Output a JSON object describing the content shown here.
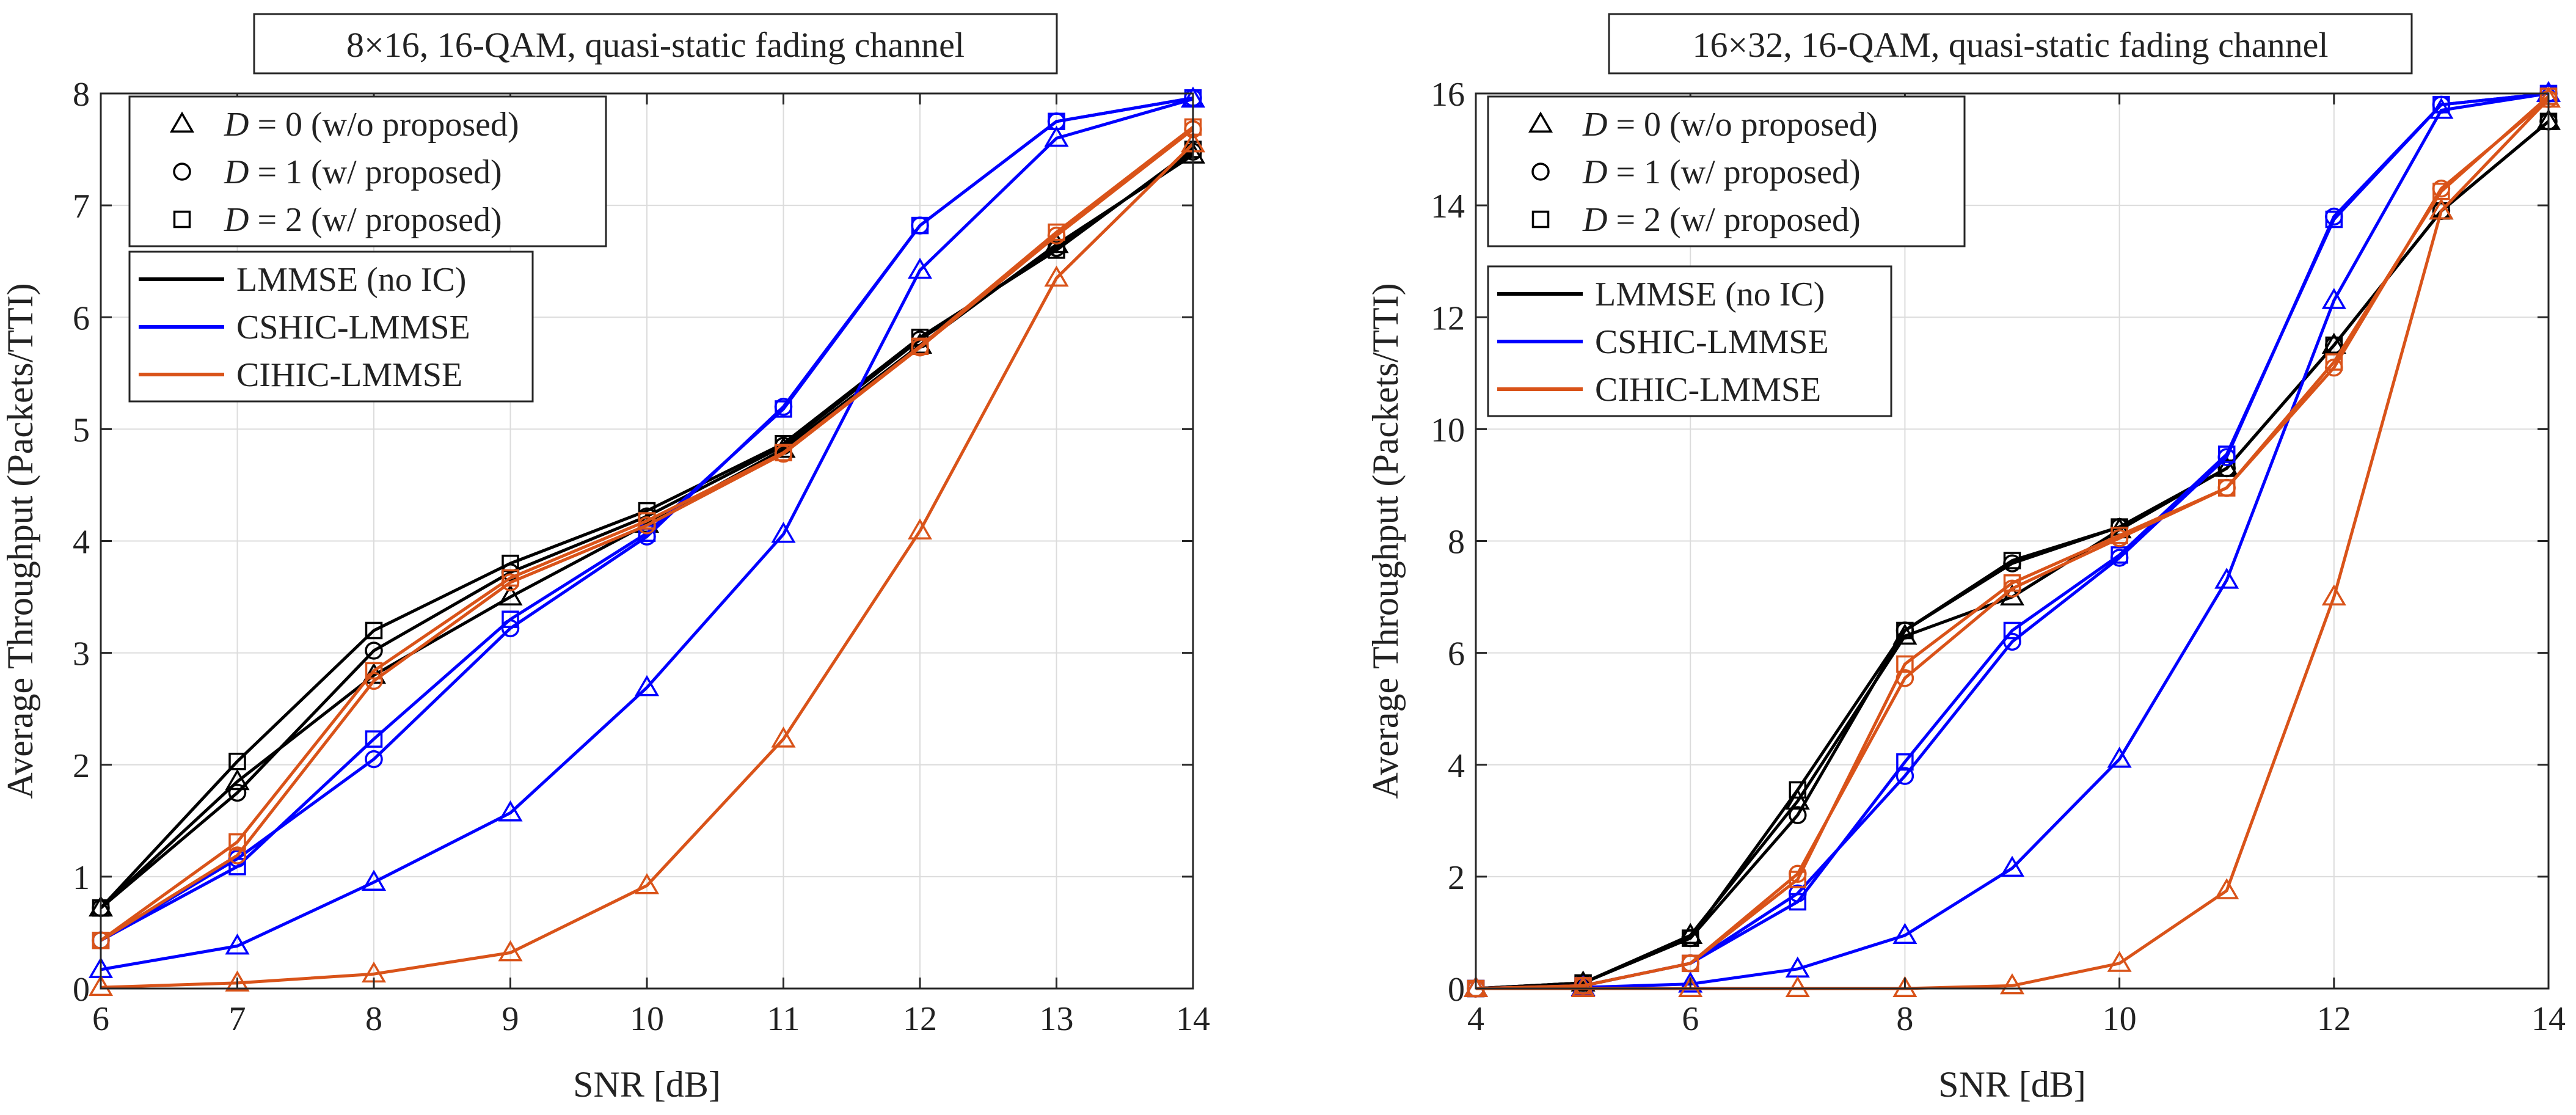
{
  "chart_data": [
    {
      "type": "line",
      "title": "8×16, 16-QAM, quasi-static fading channel",
      "xlabel": "SNR [dB]",
      "ylabel": "Average Throughput (Packets/TTI)",
      "xlim": [
        6,
        14
      ],
      "ylim": [
        0,
        8
      ],
      "xticks": [
        6,
        7,
        8,
        9,
        10,
        11,
        12,
        13,
        14
      ],
      "yticks": [
        0,
        1,
        2,
        3,
        4,
        5,
        6,
        7,
        8
      ],
      "grid": true,
      "legend_markers": [
        {
          "marker": "triangle",
          "label": "D = 0 (w/o proposed)"
        },
        {
          "marker": "circle",
          "label": "D = 1 (w/ proposed)"
        },
        {
          "marker": "square",
          "label": "D = 2 (w/ proposed)"
        }
      ],
      "legend_lines": [
        {
          "color": "#000000",
          "label": "LMMSE (no IC)"
        },
        {
          "color": "#0000ff",
          "label": "CSHIC-LMMSE"
        },
        {
          "color": "#d95319",
          "label": "CIHIC-LMMSE"
        }
      ],
      "x": [
        6,
        7,
        8,
        9,
        10,
        11,
        12,
        13,
        14
      ],
      "series": [
        {
          "name": "LMMSE (no IC), D = 0",
          "color": "#000000",
          "marker": "triangle",
          "values": [
            0.72,
            1.85,
            2.8,
            3.5,
            4.15,
            4.82,
            5.75,
            6.65,
            7.45
          ]
        },
        {
          "name": "LMMSE (no IC), D = 1",
          "color": "#000000",
          "marker": "circle",
          "values": [
            0.72,
            1.75,
            3.02,
            3.72,
            4.22,
            4.85,
            5.8,
            6.62,
            7.48
          ]
        },
        {
          "name": "LMMSE (no IC), D = 2",
          "color": "#000000",
          "marker": "square",
          "values": [
            0.72,
            2.03,
            3.2,
            3.8,
            4.27,
            4.87,
            5.82,
            6.6,
            7.5
          ]
        },
        {
          "name": "CSHIC-LMMSE, D = 0",
          "color": "#0000ff",
          "marker": "triangle",
          "values": [
            0.17,
            0.38,
            0.95,
            1.57,
            2.69,
            4.06,
            6.42,
            7.6,
            7.95
          ]
        },
        {
          "name": "CSHIC-LMMSE, D = 1",
          "color": "#0000ff",
          "marker": "circle",
          "values": [
            0.43,
            1.16,
            2.05,
            3.22,
            4.04,
            5.2,
            6.82,
            7.75,
            7.96
          ]
        },
        {
          "name": "CSHIC-LMMSE, D = 2",
          "color": "#0000ff",
          "marker": "square",
          "values": [
            0.43,
            1.09,
            2.23,
            3.3,
            4.07,
            5.18,
            6.82,
            7.75,
            7.96
          ]
        },
        {
          "name": "CIHIC-LMMSE, D = 0",
          "color": "#d95319",
          "marker": "triangle",
          "values": [
            0.01,
            0.05,
            0.13,
            0.32,
            0.92,
            2.23,
            4.09,
            6.35,
            7.55
          ]
        },
        {
          "name": "CIHIC-LMMSE, D = 1",
          "color": "#d95319",
          "marker": "circle",
          "values": [
            0.43,
            1.19,
            2.75,
            3.63,
            4.14,
            4.78,
            5.73,
            6.73,
            7.68
          ]
        },
        {
          "name": "CIHIC-LMMSE, D = 2",
          "color": "#d95319",
          "marker": "square",
          "values": [
            0.43,
            1.31,
            2.84,
            3.67,
            4.18,
            4.79,
            5.74,
            6.76,
            7.7
          ]
        }
      ]
    },
    {
      "type": "line",
      "title": "16×32, 16-QAM, quasi-static fading channel",
      "xlabel": "SNR [dB]",
      "ylabel": "Average Throughput (Packets/TTI)",
      "xlim": [
        4,
        14
      ],
      "ylim": [
        0,
        16
      ],
      "xticks": [
        4,
        6,
        8,
        10,
        12,
        14
      ],
      "yticks": [
        0,
        2,
        4,
        6,
        8,
        10,
        12,
        14,
        16
      ],
      "grid": true,
      "legend_markers": [
        {
          "marker": "triangle",
          "label": "D = 0 (w/o proposed)"
        },
        {
          "marker": "circle",
          "label": "D = 1 (w/ proposed)"
        },
        {
          "marker": "square",
          "label": "D = 2 (w/ proposed)"
        }
      ],
      "legend_lines": [
        {
          "color": "#000000",
          "label": "LMMSE (no IC)"
        },
        {
          "color": "#0000ff",
          "label": "CSHIC-LMMSE"
        },
        {
          "color": "#d95319",
          "label": "CIHIC-LMMSE"
        }
      ],
      "x": [
        4,
        5,
        6,
        7,
        8,
        9,
        10,
        11,
        12,
        13,
        14
      ],
      "series": [
        {
          "name": "LMMSE (no IC), D = 0",
          "color": "#000000",
          "marker": "triangle",
          "values": [
            0,
            0.1,
            0.95,
            3.35,
            6.3,
            7.0,
            8.2,
            9.3,
            11.5,
            13.9,
            15.5
          ]
        },
        {
          "name": "LMMSE (no IC), D = 1",
          "color": "#000000",
          "marker": "circle",
          "values": [
            0,
            0.1,
            0.9,
            3.1,
            6.4,
            7.6,
            8.25,
            9.3,
            11.5,
            13.9,
            15.5
          ]
        },
        {
          "name": "LMMSE (no IC), D = 2",
          "color": "#000000",
          "marker": "square",
          "values": [
            0,
            0.1,
            0.9,
            3.55,
            6.4,
            7.65,
            8.25,
            9.3,
            11.5,
            13.9,
            15.5
          ]
        },
        {
          "name": "CSHIC-LMMSE, D = 0",
          "color": "#0000ff",
          "marker": "triangle",
          "values": [
            0,
            0.02,
            0.08,
            0.35,
            0.95,
            2.15,
            4.1,
            7.3,
            12.3,
            15.7,
            16.0
          ]
        },
        {
          "name": "CSHIC-LMMSE, D = 1",
          "color": "#0000ff",
          "marker": "circle",
          "values": [
            0,
            0.05,
            0.45,
            1.7,
            3.8,
            6.2,
            7.7,
            9.5,
            13.8,
            15.8,
            16.0
          ]
        },
        {
          "name": "CSHIC-LMMSE, D = 2",
          "color": "#0000ff",
          "marker": "square",
          "values": [
            0,
            0.05,
            0.45,
            1.55,
            4.05,
            6.4,
            7.75,
            9.55,
            13.75,
            15.8,
            16.0
          ]
        },
        {
          "name": "CIHIC-LMMSE, D = 0",
          "color": "#d95319",
          "marker": "triangle",
          "values": [
            0,
            0,
            0,
            0,
            0,
            0.05,
            0.45,
            1.75,
            7.0,
            13.9,
            15.9
          ]
        },
        {
          "name": "CIHIC-LMMSE, D = 1",
          "color": "#d95319",
          "marker": "circle",
          "values": [
            0,
            0.05,
            0.45,
            2.05,
            5.55,
            7.15,
            8.05,
            8.95,
            11.1,
            14.3,
            15.9
          ]
        },
        {
          "name": "CIHIC-LMMSE, D = 2",
          "color": "#d95319",
          "marker": "square",
          "values": [
            0,
            0.05,
            0.45,
            1.95,
            5.8,
            7.25,
            8.1,
            8.95,
            11.2,
            14.25,
            15.95
          ]
        }
      ]
    }
  ]
}
